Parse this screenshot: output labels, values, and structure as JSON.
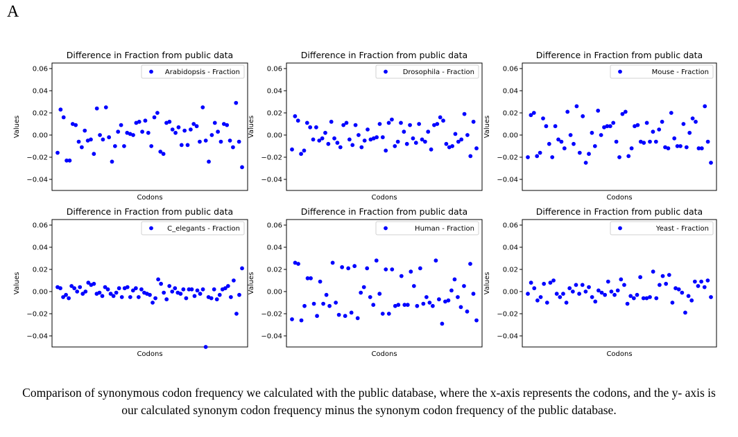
{
  "panel_label": "A",
  "caption": "Comparison of synonymous codon frequency we calculated with the public database, where the x-axis represents the codons, and the y- axis is our calculated synonym codon frequency minus the synonym codon frequency of the public database.",
  "chart_data": [
    {
      "type": "scatter",
      "title": "Difference in Fraction from public data",
      "xlabel": "Codons",
      "ylabel": "Values",
      "ylim": [
        -0.05,
        0.065
      ],
      "yticks": [
        -0.04,
        -0.02,
        0.0,
        0.02,
        0.04,
        0.06
      ],
      "legend_position": "top-right",
      "color": "#0000ff",
      "series": [
        {
          "name": "Arabidopsis - Fraction",
          "values": [
            -0.016,
            0.023,
            0.016,
            -0.023,
            -0.023,
            0.01,
            0.009,
            -0.006,
            -0.011,
            0.004,
            -0.005,
            -0.004,
            -0.017,
            0.024,
            0.0,
            -0.004,
            0.025,
            -0.002,
            -0.024,
            -0.01,
            0.003,
            0.009,
            -0.01,
            0.002,
            0.001,
            0.0,
            0.011,
            0.012,
            0.003,
            0.013,
            0.002,
            -0.01,
            0.016,
            0.02,
            -0.015,
            -0.017,
            0.011,
            0.012,
            0.005,
            0.002,
            0.007,
            -0.009,
            0.004,
            -0.009,
            0.005,
            0.01,
            0.008,
            -0.006,
            0.025,
            -0.005,
            -0.024,
            0.0,
            0.011,
            0.003,
            -0.006,
            0.01,
            0.009,
            -0.005,
            -0.011,
            0.029,
            -0.006,
            -0.029
          ]
        }
      ]
    },
    {
      "type": "scatter",
      "title": "Difference in Fraction from public data",
      "xlabel": "Codons",
      "ylabel": "Values",
      "ylim": [
        -0.05,
        0.065
      ],
      "yticks": [
        -0.04,
        -0.02,
        0.0,
        0.02,
        0.04,
        0.06
      ],
      "legend_position": "top-right",
      "color": "#0000ff",
      "series": [
        {
          "name": "Drosophila - Fraction",
          "values": [
            -0.013,
            0.017,
            0.013,
            -0.017,
            -0.014,
            0.011,
            0.007,
            -0.004,
            0.007,
            -0.005,
            -0.003,
            0.002,
            -0.008,
            0.012,
            -0.003,
            -0.007,
            -0.011,
            0.009,
            0.011,
            -0.004,
            -0.009,
            0.009,
            0.0,
            -0.011,
            -0.005,
            0.005,
            -0.004,
            -0.003,
            -0.002,
            0.01,
            -0.002,
            -0.014,
            0.011,
            0.014,
            -0.01,
            -0.006,
            0.011,
            0.003,
            -0.008,
            0.009,
            -0.003,
            -0.007,
            0.01,
            -0.004,
            -0.006,
            0.003,
            -0.013,
            0.009,
            0.01,
            0.016,
            0.013,
            -0.008,
            -0.011,
            -0.01,
            0.001,
            -0.006,
            -0.004,
            0.019,
            0.0,
            -0.019,
            0.012,
            -0.012
          ]
        }
      ]
    },
    {
      "type": "scatter",
      "title": "Difference in Fraction from public data",
      "xlabel": "Codons",
      "ylabel": "Values",
      "ylim": [
        -0.05,
        0.065
      ],
      "yticks": [
        -0.04,
        -0.02,
        0.0,
        0.02,
        0.04,
        0.06
      ],
      "legend_position": "top-right",
      "color": "#0000ff",
      "series": [
        {
          "name": "Mouse - Fraction",
          "values": [
            -0.02,
            0.018,
            0.02,
            -0.019,
            -0.016,
            0.015,
            0.008,
            -0.008,
            -0.02,
            0.008,
            -0.004,
            -0.006,
            -0.012,
            0.021,
            0.0,
            -0.008,
            0.026,
            -0.016,
            0.017,
            -0.025,
            -0.017,
            0.002,
            -0.01,
            0.022,
            0.0,
            0.007,
            0.008,
            0.008,
            0.011,
            -0.006,
            -0.02,
            0.019,
            0.021,
            -0.019,
            -0.012,
            0.008,
            0.009,
            -0.006,
            -0.007,
            0.011,
            -0.006,
            0.003,
            -0.006,
            0.005,
            0.012,
            -0.011,
            -0.012,
            0.02,
            -0.003,
            -0.01,
            -0.01,
            0.01,
            -0.011,
            0.002,
            0.015,
            0.012,
            -0.012,
            -0.012,
            0.026,
            -0.006,
            -0.025
          ]
        }
      ]
    },
    {
      "type": "scatter",
      "title": "Difference in Fraction from public data",
      "xlabel": "Codons",
      "ylabel": "Values",
      "ylim": [
        -0.05,
        0.065
      ],
      "yticks": [
        -0.04,
        -0.02,
        0.0,
        0.02,
        0.04,
        0.06
      ],
      "legend_position": "top-right",
      "color": "#0000ff",
      "series": [
        {
          "name": "C_elegants - Fraction",
          "values": [
            0.004,
            0.003,
            -0.005,
            -0.003,
            -0.006,
            0.005,
            0.003,
            0.0,
            0.004,
            -0.002,
            0.0,
            0.008,
            0.006,
            0.007,
            -0.002,
            -0.001,
            -0.004,
            0.004,
            0.002,
            -0.002,
            -0.004,
            -0.001,
            0.003,
            -0.005,
            0.003,
            0.004,
            -0.005,
            0.001,
            0.003,
            -0.005,
            0.002,
            -0.001,
            -0.002,
            -0.003,
            -0.01,
            -0.006,
            0.011,
            0.007,
            -0.001,
            -0.007,
            0.005,
            0.0,
            0.003,
            -0.001,
            -0.002,
            0.002,
            -0.006,
            0.002,
            0.002,
            -0.004,
            0.001,
            -0.002,
            0.002,
            -0.05,
            -0.005,
            -0.006,
            0.002,
            -0.007,
            -0.003,
            0.002,
            0.003,
            0.005,
            -0.005,
            0.01,
            -0.02,
            -0.003,
            0.021
          ]
        }
      ]
    },
    {
      "type": "scatter",
      "title": "Difference in Fraction from public data",
      "xlabel": "Codons",
      "ylabel": "Values",
      "ylim": [
        -0.05,
        0.065
      ],
      "yticks": [
        -0.04,
        -0.02,
        0.0,
        0.02,
        0.04,
        0.06
      ],
      "legend_position": "top-right",
      "color": "#0000ff",
      "series": [
        {
          "name": "Human - Fraction",
          "values": [
            -0.025,
            0.026,
            0.025,
            -0.026,
            -0.013,
            0.012,
            0.012,
            -0.011,
            -0.022,
            0.009,
            -0.011,
            -0.003,
            -0.013,
            0.026,
            -0.01,
            -0.021,
            0.022,
            -0.022,
            0.021,
            -0.019,
            0.023,
            -0.024,
            -0.001,
            0.004,
            0.021,
            -0.005,
            -0.012,
            0.028,
            -0.002,
            -0.02,
            0.02,
            -0.02,
            0.02,
            -0.013,
            -0.012,
            0.014,
            -0.012,
            -0.012,
            0.018,
            0.005,
            -0.013,
            0.021,
            -0.011,
            -0.005,
            -0.01,
            -0.013,
            0.028,
            -0.007,
            -0.029,
            -0.009,
            -0.008,
            0.001,
            0.011,
            -0.005,
            -0.014,
            0.005,
            -0.018,
            0.025,
            -0.002,
            -0.026
          ]
        }
      ]
    },
    {
      "type": "scatter",
      "title": "Difference in Fraction from public data",
      "xlabel": "Codons",
      "ylabel": "Values",
      "ylim": [
        -0.05,
        0.065
      ],
      "yticks": [
        -0.04,
        -0.02,
        0.0,
        0.02,
        0.04,
        0.06
      ],
      "legend_position": "top-right",
      "color": "#0000ff",
      "series": [
        {
          "name": "Yeast - Fraction",
          "values": [
            -0.002,
            0.008,
            0.003,
            -0.008,
            -0.005,
            0.007,
            -0.01,
            0.008,
            0.01,
            -0.002,
            -0.005,
            -0.002,
            -0.01,
            0.003,
            0.0,
            0.006,
            -0.002,
            0.006,
            0.0,
            0.004,
            -0.005,
            -0.009,
            0.001,
            -0.001,
            -0.003,
            0.009,
            0.0,
            -0.003,
            0.001,
            0.011,
            0.006,
            -0.011,
            -0.004,
            -0.006,
            -0.003,
            0.013,
            -0.006,
            -0.006,
            -0.005,
            0.018,
            -0.006,
            0.006,
            0.014,
            0.007,
            0.015,
            -0.01,
            0.003,
            0.002,
            -0.001,
            -0.019,
            -0.004,
            -0.008,
            0.009,
            0.005,
            0.009,
            0.004,
            0.01,
            -0.005
          ]
        }
      ]
    }
  ]
}
